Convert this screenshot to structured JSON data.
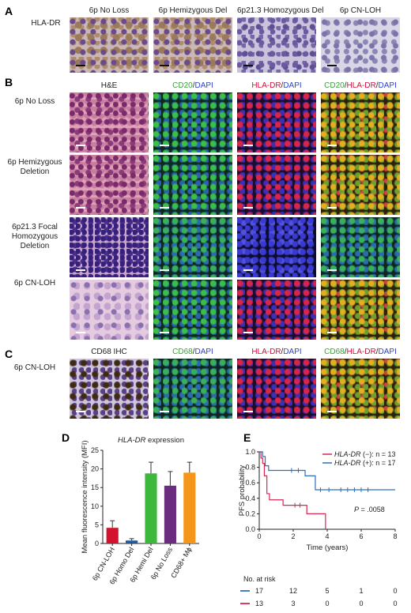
{
  "panel_letters": [
    "A",
    "B",
    "C",
    "D",
    "E"
  ],
  "panelA": {
    "row_label": "HLA-DR",
    "columns": [
      "6p No Loss",
      "6p Hemizygous Del",
      "6p21.3 Homozygous Del",
      "6p CN-LOH"
    ]
  },
  "panelB": {
    "col_he": "H&E",
    "col_cd20": {
      "p1": "CD20",
      "sep": "/",
      "p2": "DAPI"
    },
    "col_hladr": {
      "p1": "HLA-DR",
      "sep": "/",
      "p2": "DAPI"
    },
    "col_merge": {
      "p1": "CD20",
      "sep1": "/",
      "p2": "HLA-DR",
      "sep2": "/",
      "p3": "DAPI"
    },
    "rows": [
      {
        "l1": "6p No Loss",
        "l2": "",
        "l3": ""
      },
      {
        "l1": "6p Hemizygous",
        "l2": "Deletion",
        "l3": ""
      },
      {
        "l1": "6p21.3 Focal",
        "l2": "Homozygous",
        "l3": "Deletion"
      },
      {
        "l1": "6p CN-LOH",
        "l2": "",
        "l3": ""
      }
    ]
  },
  "panelC": {
    "row_label": "6p CN-LOH",
    "col_ihc": "CD68 IHC",
    "col_cd68": {
      "p1": "CD68",
      "sep": "/",
      "p2": "DAPI"
    },
    "col_hladr": {
      "p1": "HLA-DR",
      "sep": "/",
      "p2": "DAPI"
    },
    "col_merge": {
      "p1": "CD68",
      "sep1": "/",
      "p2": "HLA-DR",
      "sep2": "/",
      "p3": "DAPI"
    }
  },
  "colors": {
    "green": "#3aa23a",
    "red": "#d0103a",
    "blue": "#2f44c8"
  },
  "chart_data": [
    {
      "type": "bar",
      "title_italic": "HLA-DR",
      "title_rest": " expression",
      "ylabel": "Mean fluorescence intensity (MFI)",
      "categories": [
        "6p CN-LOH",
        "6p Homo Del",
        "6p Hemi Del",
        "6p No Loss",
        "CD68+ Mϕ"
      ],
      "values": [
        4.2,
        0.8,
        18.8,
        15.5,
        19.0
      ],
      "errors": [
        1.9,
        0.5,
        3.0,
        3.8,
        2.8
      ],
      "colors": [
        "#d4122f",
        "#1e5a9e",
        "#3cb83c",
        "#6b2c7f",
        "#f5961b"
      ],
      "ylim": [
        0,
        25
      ],
      "yticks": [
        "0",
        "5",
        "10",
        "15",
        "20",
        "25"
      ]
    },
    {
      "type": "line",
      "xlabel": "Time (years)",
      "ylabel": "PFS probability",
      "xlim": [
        0,
        8
      ],
      "ylim": [
        0,
        1
      ],
      "xticks": [
        "0",
        "2",
        "4",
        "6",
        "8"
      ],
      "yticks": [
        "0.0",
        "0.2",
        "0.4",
        "0.6",
        "0.8",
        "1.0"
      ],
      "pvalue_label": "P",
      "pvalue_text": " = .0058",
      "series": [
        {
          "name_italic": "HLA-DR",
          "name_rest": " (−): n = 13",
          "color": "#d4284f",
          "points": [
            [
              0,
              1.0
            ],
            [
              0.1,
              0.92
            ],
            [
              0.2,
              0.85
            ],
            [
              0.3,
              0.69
            ],
            [
              0.45,
              0.46
            ],
            [
              0.6,
              0.38
            ],
            [
              1.4,
              0.31
            ],
            [
              2.8,
              0.2
            ],
            [
              3.9,
              0.2
            ],
            [
              3.9,
              0
            ]
          ],
          "censored": [
            [
              2.1,
              0.31
            ],
            [
              2.4,
              0.31
            ]
          ]
        },
        {
          "name_italic": "HLA-DR",
          "name_rest": " (+): n = 17",
          "color": "#2f6fb8",
          "points": [
            [
              0,
              1.0
            ],
            [
              0.2,
              0.94
            ],
            [
              0.35,
              0.82
            ],
            [
              0.55,
              0.76
            ],
            [
              2.6,
              0.76
            ],
            [
              2.7,
              0.69
            ],
            [
              3.2,
              0.69
            ],
            [
              3.3,
              0.51
            ],
            [
              8,
              0.51
            ]
          ],
          "censored": [
            [
              1.9,
              0.76
            ],
            [
              2.3,
              0.76
            ],
            [
              3.6,
              0.51
            ],
            [
              4.1,
              0.51
            ],
            [
              4.8,
              0.51
            ],
            [
              5.2,
              0.51
            ],
            [
              5.6,
              0.51
            ],
            [
              6.0,
              0.51
            ],
            [
              6.4,
              0.51
            ]
          ]
        }
      ]
    }
  ],
  "risk_table": {
    "title": "No. at risk",
    "rows": [
      {
        "color": "#2f6fb8",
        "values": [
          "17",
          "12",
          "5",
          "1",
          "0"
        ]
      },
      {
        "color": "#d4284f",
        "values": [
          "13",
          "3",
          "0",
          "0",
          "0"
        ]
      }
    ]
  }
}
